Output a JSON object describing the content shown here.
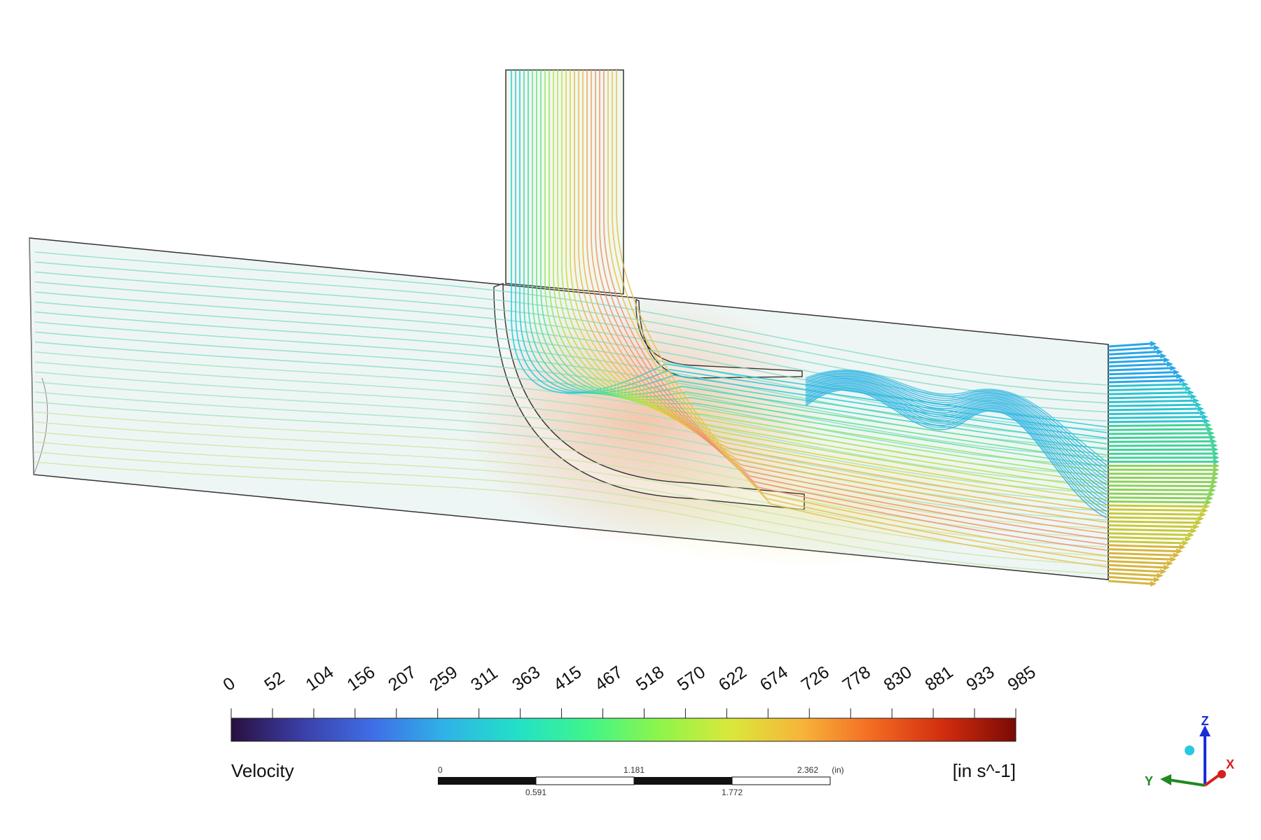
{
  "legend": {
    "title": "Velocity",
    "units": "[in s^-1]",
    "ticks": [
      "0",
      "52",
      "104",
      "156",
      "207",
      "259",
      "311",
      "363",
      "415",
      "467",
      "518",
      "570",
      "622",
      "674",
      "726",
      "778",
      "830",
      "881",
      "933",
      "985"
    ],
    "colormap": [
      "#2a0f3e",
      "#3b3fa8",
      "#3f6fe8",
      "#2fb3e6",
      "#22e0c8",
      "#3ff58a",
      "#8ef54a",
      "#d9e83a",
      "#f7b43a",
      "#f36a22",
      "#d12c0e",
      "#7a0a05"
    ]
  },
  "scale_bar": {
    "top_labels": [
      "0",
      "1.181",
      "2.362"
    ],
    "bottom_labels": [
      "0.591",
      "1.772"
    ],
    "unit": "(in)"
  },
  "triad": {
    "x_label": "X",
    "y_label": "Y",
    "z_label": "Z",
    "x_color": "#d62020",
    "y_color": "#1f8a1f",
    "z_color": "#1a2ed6"
  }
}
